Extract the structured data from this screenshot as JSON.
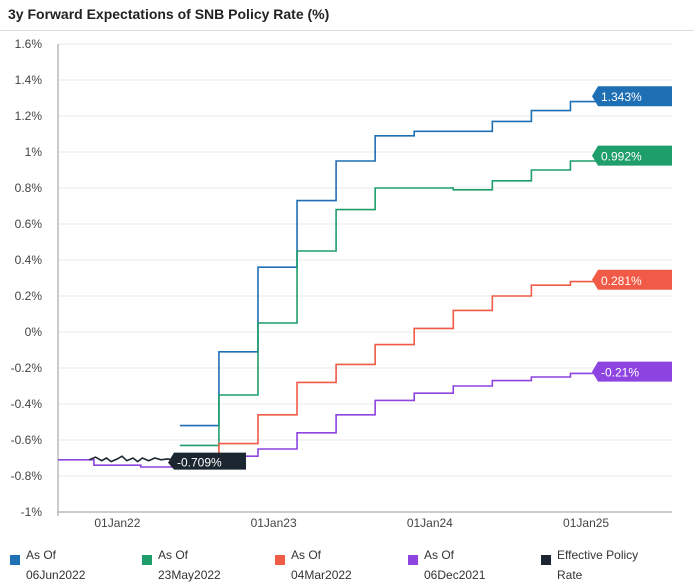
{
  "chart_data": {
    "type": "line",
    "title": "3y Forward Expectations of SNB Policy Rate (%)",
    "xlabel": "",
    "ylabel": "",
    "ylim": [
      -1.0,
      1.6
    ],
    "yticks": [
      -1.0,
      -0.8,
      -0.6,
      -0.4,
      -0.2,
      0.0,
      0.2,
      0.4,
      0.6,
      0.8,
      1.0,
      1.2,
      1.4,
      1.6
    ],
    "ytick_labels": [
      "-1%",
      "-0.8%",
      "-0.6%",
      "-0.4%",
      "-0.2%",
      "0%",
      "0.2%",
      "0.4%",
      "0.6%",
      "0.8%",
      "1%",
      "1.2%",
      "1.4%",
      "1.6%"
    ],
    "xlim": [
      2021.62,
      2025.55
    ],
    "xticks": [
      2022.0,
      2023.0,
      2024.0,
      2025.0
    ],
    "xtick_labels": [
      "01Jan22",
      "01Jan23",
      "01Jan24",
      "01Jan25"
    ],
    "series": [
      {
        "name": "As Of 06Jun2022",
        "legend_lines": [
          "As Of",
          "06Jun2022"
        ],
        "color": "#1f6fb5",
        "end_label": "1.343%",
        "step": true,
        "x": [
          2022.4,
          2022.65,
          2022.9,
          2023.15,
          2023.4,
          2023.65,
          2023.9,
          2024.15,
          2024.4,
          2024.65,
          2024.9,
          2025.15
        ],
        "y": [
          -0.52,
          -0.11,
          0.36,
          0.73,
          0.95,
          1.09,
          1.115,
          1.115,
          1.17,
          1.23,
          1.28,
          1.31
        ]
      },
      {
        "name": "As Of 23May2022",
        "legend_lines": [
          "As Of",
          "23May2022"
        ],
        "color": "#1e9e6a",
        "end_label": "0.992%",
        "step": true,
        "x": [
          2022.4,
          2022.65,
          2022.9,
          2023.15,
          2023.4,
          2023.65,
          2023.9,
          2024.15,
          2024.4,
          2024.65,
          2024.9,
          2025.15
        ],
        "y": [
          -0.63,
          -0.35,
          0.05,
          0.45,
          0.68,
          0.8,
          0.8,
          0.79,
          0.84,
          0.9,
          0.95,
          0.98
        ]
      },
      {
        "name": "As Of 04Mar2022",
        "legend_lines": [
          "As Of",
          "04Mar2022"
        ],
        "color": "#f05a46",
        "end_label": "0.281%",
        "step": true,
        "x": [
          2022.4,
          2022.65,
          2022.9,
          2023.15,
          2023.4,
          2023.65,
          2023.9,
          2024.15,
          2024.4,
          2024.65,
          2024.9,
          2025.15
        ],
        "y": [
          -0.7,
          -0.62,
          -0.46,
          -0.28,
          -0.18,
          -0.07,
          0.02,
          0.12,
          0.2,
          0.26,
          0.28,
          0.29
        ]
      },
      {
        "name": "As Of 06Dec2021",
        "legend_lines": [
          "As Of",
          "06Dec2021"
        ],
        "color": "#8e44e0",
        "end_label": "-0.21%",
        "step": true,
        "x": [
          2021.62,
          2021.85,
          2022.15,
          2022.4,
          2022.65,
          2022.9,
          2023.15,
          2023.4,
          2023.65,
          2023.9,
          2024.15,
          2024.4,
          2024.65,
          2024.9,
          2025.15
        ],
        "y": [
          -0.71,
          -0.74,
          -0.75,
          -0.7,
          -0.69,
          -0.65,
          -0.56,
          -0.46,
          -0.38,
          -0.34,
          -0.3,
          -0.27,
          -0.25,
          -0.23,
          -0.22
        ]
      },
      {
        "name": "Effective Policy Rate",
        "legend_lines": [
          "Effective Policy",
          "Rate"
        ],
        "color": "#1b2631",
        "end_label": "-0.709%",
        "step": false,
        "x": [
          2021.82,
          2021.86,
          2021.9,
          2021.93,
          2021.96,
          2022.0,
          2022.03,
          2022.06,
          2022.1,
          2022.13,
          2022.16,
          2022.2,
          2022.24,
          2022.28,
          2022.32,
          2022.36,
          2022.4,
          2022.43
        ],
        "y": [
          -0.71,
          -0.695,
          -0.715,
          -0.7,
          -0.72,
          -0.705,
          -0.69,
          -0.715,
          -0.7,
          -0.72,
          -0.7,
          -0.715,
          -0.7,
          -0.71,
          -0.705,
          -0.71,
          -0.705,
          -0.709
        ]
      }
    ]
  }
}
